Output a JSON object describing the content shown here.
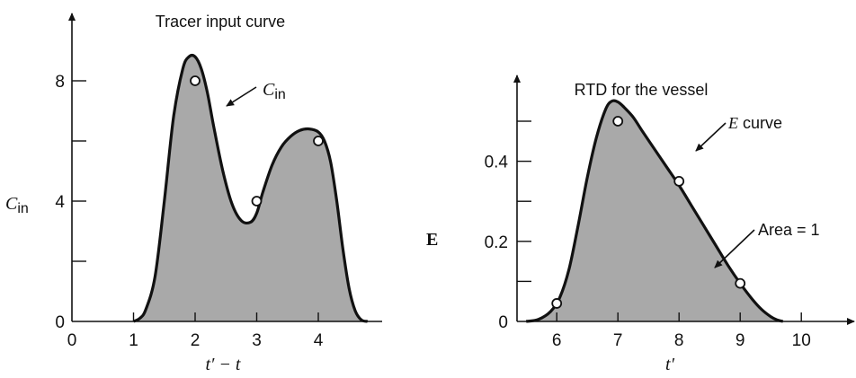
{
  "colors": {
    "fill": "#a9a9a9",
    "stroke": "#111111",
    "marker_fill": "#ffffff",
    "background": "#ffffff"
  },
  "chart_data": [
    {
      "type": "area",
      "title": "Tracer input curve",
      "xlabel": {
        "main": "t′",
        "rest": " − t"
      },
      "ylabel": {
        "main": "C",
        "sub": "in"
      },
      "xlim": [
        0,
        5
      ],
      "ylim": [
        0,
        10
      ],
      "xticks": [
        0,
        1,
        2,
        3,
        4
      ],
      "xtick_labels": [
        "0",
        "1",
        "2",
        "3",
        "4"
      ],
      "yticks": [
        0,
        2,
        4,
        6,
        8
      ],
      "ytick_labels": [
        "0",
        "",
        "4",
        "",
        "8"
      ],
      "curve": {
        "name": "C",
        "name_sub": "in",
        "x": [
          1.0,
          1.1,
          1.2,
          1.35,
          1.5,
          1.65,
          1.8,
          1.9,
          2.0,
          2.1,
          2.2,
          2.3,
          2.45,
          2.6,
          2.75,
          2.9,
          3.0,
          3.1,
          3.25,
          3.4,
          3.55,
          3.7,
          3.85,
          4.0,
          4.1,
          4.2,
          4.3,
          4.4,
          4.5,
          4.6,
          4.7,
          4.8
        ],
        "y": [
          0.0,
          0.1,
          0.4,
          1.5,
          4.0,
          6.8,
          8.4,
          8.8,
          8.8,
          8.4,
          7.6,
          6.5,
          5.0,
          3.9,
          3.35,
          3.3,
          3.6,
          4.3,
          5.2,
          5.8,
          6.15,
          6.35,
          6.4,
          6.3,
          6.0,
          5.3,
          4.0,
          2.4,
          1.1,
          0.35,
          0.05,
          0.0
        ]
      },
      "points": {
        "x": [
          2,
          3,
          4
        ],
        "y": [
          8,
          4,
          6
        ]
      }
    },
    {
      "type": "area",
      "title": "RTD for the vessel",
      "xlabel": {
        "main": "t′",
        "rest": ""
      },
      "ylabel": {
        "main": "E",
        "sub": ""
      },
      "xlim": [
        5,
        10.5
      ],
      "ylim": [
        0,
        0.6
      ],
      "xticks": [
        6,
        7,
        8,
        9,
        10
      ],
      "xtick_labels": [
        "6",
        "7",
        "8",
        "9",
        "10"
      ],
      "yticks": [
        0,
        0.1,
        0.2,
        0.3,
        0.4,
        0.5
      ],
      "ytick_labels": [
        "0",
        "",
        "0.2",
        "",
        "0.4",
        ""
      ],
      "curve": {
        "name": "E curve",
        "x": [
          5.5,
          5.7,
          5.9,
          6.05,
          6.2,
          6.35,
          6.5,
          6.65,
          6.8,
          6.9,
          7.0,
          7.1,
          7.25,
          7.4,
          7.6,
          7.8,
          8.0,
          8.2,
          8.4,
          8.6,
          8.8,
          9.0,
          9.2,
          9.35,
          9.5,
          9.6,
          9.7
        ],
        "y": [
          0.0,
          0.005,
          0.025,
          0.06,
          0.13,
          0.24,
          0.36,
          0.46,
          0.53,
          0.55,
          0.548,
          0.535,
          0.51,
          0.475,
          0.43,
          0.385,
          0.34,
          0.29,
          0.24,
          0.19,
          0.14,
          0.095,
          0.055,
          0.03,
          0.012,
          0.004,
          0.0
        ]
      },
      "points": {
        "x": [
          6,
          7,
          8,
          9
        ],
        "y": [
          0.045,
          0.5,
          0.35,
          0.095
        ]
      },
      "annotations": {
        "area_label": "Area = 1"
      }
    }
  ]
}
